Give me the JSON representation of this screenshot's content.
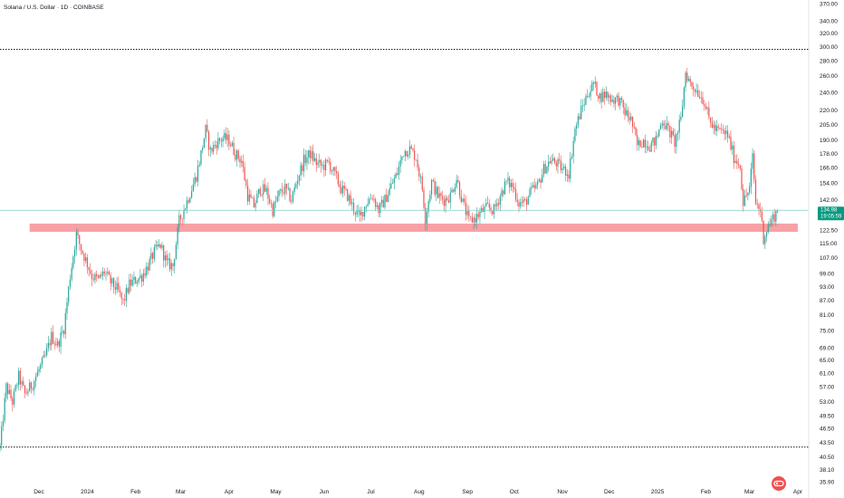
{
  "header": {
    "title": "Solana / U.S. Dollar · 1D · COINBASE"
  },
  "price_badge": {
    "price": "134.98",
    "countdown": "19:05:59"
  },
  "colors": {
    "up": "#26a69a",
    "down": "#ef5350",
    "zone": "#f7a1a6",
    "last_price_line": "#7fd0c6",
    "axis_text": "#131722",
    "logo": "#ef5350"
  },
  "logo": {
    "icon": "tradingview-logo-icon"
  },
  "chart_data": {
    "type": "candlestick",
    "y_scale": "log",
    "ylim": [
      35.9,
      370
    ],
    "xlim": [
      "2023-11-06",
      "2025-04-08"
    ],
    "grid": false,
    "y_ticks": [
      "370.00",
      "340.00",
      "320.00",
      "300.00",
      "280.00",
      "260.00",
      "240.00",
      "220.00",
      "205.00",
      "190.00",
      "178.00",
      "166.00",
      "154.00",
      "142.00",
      "122.50",
      "115.00",
      "107.00",
      "99.00",
      "93.00",
      "87.00",
      "81.00",
      "75.00",
      "69.00",
      "65.00",
      "61.00",
      "57.00",
      "53.00",
      "49.50",
      "46.50",
      "43.50",
      "40.50",
      "38.10",
      "35.90"
    ],
    "x_ticks": [
      {
        "label": "Dec",
        "date": "2023-12-01"
      },
      {
        "label": "2024",
        "date": "2024-01-01"
      },
      {
        "label": "Feb",
        "date": "2024-02-01"
      },
      {
        "label": "Mar",
        "date": "2024-03-01"
      },
      {
        "label": "Apr",
        "date": "2024-04-01"
      },
      {
        "label": "May",
        "date": "2024-05-01"
      },
      {
        "label": "Jun",
        "date": "2024-06-01"
      },
      {
        "label": "Jul",
        "date": "2024-07-01"
      },
      {
        "label": "Aug",
        "date": "2024-08-01"
      },
      {
        "label": "Sep",
        "date": "2024-09-01"
      },
      {
        "label": "Oct",
        "date": "2024-10-01"
      },
      {
        "label": "Nov",
        "date": "2024-11-01"
      },
      {
        "label": "Dec",
        "date": "2024-12-01"
      },
      {
        "label": "2025",
        "date": "2025-01-01"
      },
      {
        "label": "Feb",
        "date": "2025-02-01"
      },
      {
        "label": "Mar",
        "date": "2025-03-01"
      },
      {
        "label": "Apr",
        "date": "2025-04-01"
      }
    ],
    "horizontal_lines": [
      {
        "price": 296,
        "style": "dotted"
      },
      {
        "price": 42.5,
        "style": "dotted"
      }
    ],
    "zone": {
      "low": 121.5,
      "high": 126.5,
      "x_start": "2023-11-25",
      "x_end": "2025-04-01"
    },
    "last_price": 134.98,
    "path": [
      [
        "2023-11-06",
        42.5
      ],
      [
        "2023-11-10",
        57
      ],
      [
        "2023-11-14",
        53
      ],
      [
        "2023-11-18",
        60
      ],
      [
        "2023-11-22",
        55
      ],
      [
        "2023-11-27",
        58
      ],
      [
        "2023-12-01",
        62
      ],
      [
        "2023-12-05",
        66
      ],
      [
        "2023-12-09",
        73
      ],
      [
        "2023-12-13",
        70
      ],
      [
        "2023-12-17",
        76
      ],
      [
        "2023-12-21",
        98
      ],
      [
        "2023-12-25",
        120
      ],
      [
        "2023-12-28",
        112
      ],
      [
        "2024-01-01",
        104
      ],
      [
        "2024-01-04",
        98
      ],
      [
        "2024-01-08",
        96
      ],
      [
        "2024-01-12",
        100
      ],
      [
        "2024-01-16",
        95
      ],
      [
        "2024-01-20",
        92
      ],
      [
        "2024-01-24",
        86
      ],
      [
        "2024-01-28",
        94
      ],
      [
        "2024-02-01",
        96
      ],
      [
        "2024-02-05",
        98
      ],
      [
        "2024-02-09",
        103
      ],
      [
        "2024-02-13",
        110
      ],
      [
        "2024-02-17",
        114
      ],
      [
        "2024-02-21",
        104
      ],
      [
        "2024-02-25",
        103
      ],
      [
        "2024-02-29",
        128
      ],
      [
        "2024-03-04",
        138
      ],
      [
        "2024-03-08",
        150
      ],
      [
        "2024-03-11",
        160
      ],
      [
        "2024-03-14",
        178
      ],
      [
        "2024-03-17",
        200
      ],
      [
        "2024-03-20",
        180
      ],
      [
        "2024-03-24",
        188
      ],
      [
        "2024-03-28",
        192
      ],
      [
        "2024-04-01",
        190
      ],
      [
        "2024-04-05",
        178
      ],
      [
        "2024-04-09",
        172
      ],
      [
        "2024-04-13",
        145
      ],
      [
        "2024-04-17",
        138
      ],
      [
        "2024-04-21",
        150
      ],
      [
        "2024-04-25",
        148
      ],
      [
        "2024-04-29",
        135
      ],
      [
        "2024-05-03",
        146
      ],
      [
        "2024-05-07",
        150
      ],
      [
        "2024-05-11",
        142
      ],
      [
        "2024-05-15",
        158
      ],
      [
        "2024-05-19",
        172
      ],
      [
        "2024-05-23",
        178
      ],
      [
        "2024-05-27",
        170
      ],
      [
        "2024-05-31",
        167
      ],
      [
        "2024-06-04",
        170
      ],
      [
        "2024-06-08",
        160
      ],
      [
        "2024-06-12",
        150
      ],
      [
        "2024-06-16",
        145
      ],
      [
        "2024-06-20",
        136
      ],
      [
        "2024-06-24",
        130
      ],
      [
        "2024-06-28",
        140
      ],
      [
        "2024-07-02",
        145
      ],
      [
        "2024-07-06",
        135
      ],
      [
        "2024-07-10",
        142
      ],
      [
        "2024-07-14",
        152
      ],
      [
        "2024-07-18",
        162
      ],
      [
        "2024-07-22",
        180
      ],
      [
        "2024-07-26",
        182
      ],
      [
        "2024-07-30",
        175
      ],
      [
        "2024-08-03",
        150
      ],
      [
        "2024-08-05",
        130
      ],
      [
        "2024-08-09",
        155
      ],
      [
        "2024-08-13",
        145
      ],
      [
        "2024-08-17",
        142
      ],
      [
        "2024-08-21",
        145
      ],
      [
        "2024-08-25",
        158
      ],
      [
        "2024-08-29",
        140
      ],
      [
        "2024-09-02",
        128
      ],
      [
        "2024-09-06",
        130
      ],
      [
        "2024-09-10",
        134
      ],
      [
        "2024-09-14",
        137
      ],
      [
        "2024-09-18",
        135
      ],
      [
        "2024-09-22",
        145
      ],
      [
        "2024-09-26",
        155
      ],
      [
        "2024-09-30",
        152
      ],
      [
        "2024-10-04",
        140
      ],
      [
        "2024-10-08",
        140
      ],
      [
        "2024-10-12",
        148
      ],
      [
        "2024-10-16",
        152
      ],
      [
        "2024-10-20",
        165
      ],
      [
        "2024-10-24",
        172
      ],
      [
        "2024-10-28",
        170
      ],
      [
        "2024-11-01",
        165
      ],
      [
        "2024-11-05",
        162
      ],
      [
        "2024-11-09",
        200
      ],
      [
        "2024-11-13",
        220
      ],
      [
        "2024-11-17",
        238
      ],
      [
        "2024-11-21",
        250
      ],
      [
        "2024-11-25",
        235
      ],
      [
        "2024-11-29",
        238
      ],
      [
        "2024-12-03",
        232
      ],
      [
        "2024-12-07",
        232
      ],
      [
        "2024-12-11",
        218
      ],
      [
        "2024-12-15",
        210
      ],
      [
        "2024-12-19",
        185
      ],
      [
        "2024-12-23",
        190
      ],
      [
        "2024-12-27",
        185
      ],
      [
        "2024-12-31",
        190
      ],
      [
        "2025-01-04",
        210
      ],
      [
        "2025-01-08",
        200
      ],
      [
        "2025-01-12",
        188
      ],
      [
        "2025-01-16",
        210
      ],
      [
        "2025-01-19",
        265
      ],
      [
        "2025-01-22",
        250
      ],
      [
        "2025-01-25",
        245
      ],
      [
        "2025-01-28",
        238
      ],
      [
        "2025-01-31",
        230
      ],
      [
        "2025-02-03",
        210
      ],
      [
        "2025-02-07",
        200
      ],
      [
        "2025-02-11",
        198
      ],
      [
        "2025-02-15",
        195
      ],
      [
        "2025-02-19",
        175
      ],
      [
        "2025-02-23",
        168
      ],
      [
        "2025-02-25",
        140
      ],
      [
        "2025-02-27",
        145
      ],
      [
        "2025-03-01",
        150
      ],
      [
        "2025-03-03",
        175
      ],
      [
        "2025-03-05",
        140
      ],
      [
        "2025-03-08",
        135
      ],
      [
        "2025-03-10",
        118
      ],
      [
        "2025-03-13",
        125
      ],
      [
        "2025-03-16",
        130
      ],
      [
        "2025-03-19",
        135
      ]
    ]
  }
}
